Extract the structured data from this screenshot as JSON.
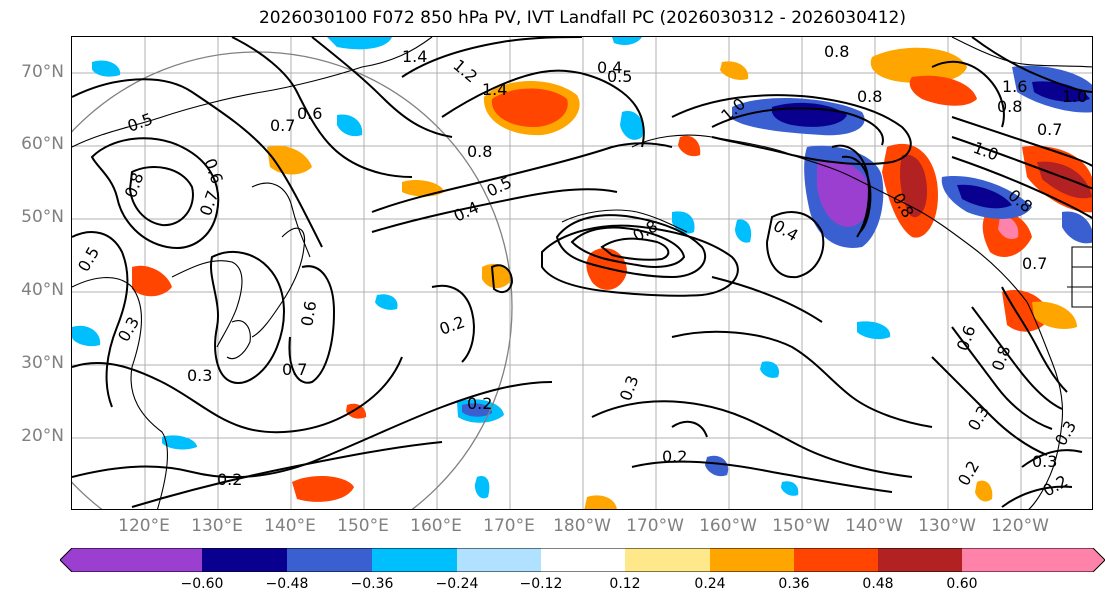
{
  "title": "2026030100 F072 850 hPa PV, IVT Landfall PC (2026030312 - 2026030412)",
  "lat_labels": [
    "70°N",
    "60°N",
    "50°N",
    "40°N",
    "30°N",
    "20°N"
  ],
  "lon_labels": [
    "120°E",
    "130°E",
    "140°E",
    "150°E",
    "160°E",
    "170°E",
    "180°W",
    "170°W",
    "160°W",
    "150°W",
    "140°W",
    "130°W",
    "120°W"
  ],
  "colorbar": {
    "levels": [
      "−0.60",
      "−0.48",
      "−0.36",
      "−0.24",
      "−0.12",
      "0.12",
      "0.24",
      "0.36",
      "0.48",
      "0.60"
    ],
    "colors": [
      "#9a3fd0",
      "#0a0090",
      "#3a5fd0",
      "#00bfff",
      "#b0e2ff",
      "#ffffff",
      "#ffe88a",
      "#ffa500",
      "#ff4500",
      "#b22222",
      "#ff82ab"
    ]
  },
  "contour_labels": [
    "0.2",
    "0.3",
    "0.4",
    "0.5",
    "0.6",
    "0.7",
    "0.8",
    "1.0",
    "1.2",
    "1.4",
    "1.6"
  ],
  "map_region": {
    "lon_min": 110,
    "lon_max": 250,
    "lat_min": 10,
    "lat_max": 75
  }
}
